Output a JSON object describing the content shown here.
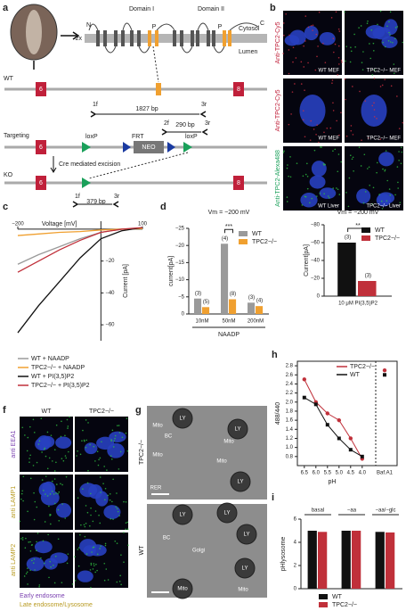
{
  "figure": {
    "panel_labels": [
      "a",
      "b",
      "c",
      "d",
      "e",
      "f",
      "g",
      "h",
      "i"
    ],
    "a": {
      "domain_1": "Domain I",
      "domain_2": "Domain II",
      "n_term": "N",
      "c_term": "C",
      "repeat": "2x",
      "p1": "P",
      "p2": "P",
      "cytosol": "Cytosol",
      "lumen": "Lumen",
      "wt": "WT",
      "wt_exon_6": "6",
      "wt_exon_8": "8",
      "wt_primer_1f": "1f",
      "wt_band_1": "1827 bp",
      "wt_primer_3r": "3r",
      "wt_primer_2f": "2f",
      "wt_band_2": "290 bp",
      "wt_primer_3r_2": "3r",
      "targeting": "Targeting",
      "tg_exon_6": "6",
      "loxp_1": "loxP",
      "frt": "FRT",
      "neo": "NEO",
      "loxp_2": "loxP",
      "cre": "Cre mediated excision",
      "ko": "KO",
      "ko_exon_6": "6",
      "ko_exon_8": "8",
      "ko_primer_1f": "1f",
      "ko_band": "379 bp",
      "ko_primer_3r": "3r"
    },
    "b": {
      "row_labels": [
        "Anti-TPC2-Cy5",
        "Anti-TPC2-Cy5",
        "Anti-TPC2-Alexa488"
      ],
      "captions": [
        "WT MEF",
        "TPC2−/− MEF",
        "WT MEF",
        "TPC2−/− MEF",
        "WT Liver",
        "TPC2−/− Liver"
      ]
    },
    "f": {
      "columns": [
        "WT",
        "TPC2−/−"
      ],
      "rows": [
        "anti EEA1",
        "anti LAMP1",
        "anti LAMP2"
      ],
      "key": [
        "Early endosome",
        "Late endosome/Lysosome"
      ]
    },
    "g": {
      "rows": [
        "TPC2−/−",
        "WT"
      ],
      "labels_top": [
        "LY",
        "Mito",
        "BC",
        "LY",
        "Mito",
        "Mito",
        "Mito",
        "RER",
        "LY"
      ],
      "labels_bottom": [
        "LY",
        "LY",
        "LY",
        "BC",
        "Golgi",
        "LY",
        "Mito",
        "Mito"
      ]
    }
  },
  "chart_data": [
    {
      "type": "line",
      "x_label": "Voltage [mV]",
      "y_label": "Current [pA]",
      "x": [
        -200,
        -150,
        -100,
        -50,
        0,
        50,
        100
      ],
      "xlim": [
        -200,
        100
      ],
      "xticks": [
        {
          "value": -200,
          "label": "−200"
        },
        100
      ],
      "ylim": [
        -70,
        5
      ],
      "yticks": [
        {
          "value": -20,
          "label": "−20"
        },
        {
          "value": -40,
          "label": "−40"
        },
        {
          "value": -60,
          "label": "−60"
        }
      ],
      "legend": "below",
      "series": [
        {
          "name": "WT + NAADP",
          "color": "#9a9a9a",
          "values": [
            -22,
            -16,
            -11,
            -6,
            -2,
            0,
            0.5
          ]
        },
        {
          "name": "TPC2−/− + NAADP",
          "color": "#f0a030",
          "values": [
            -4,
            -3,
            -2,
            -1.5,
            -0.5,
            0,
            0.3
          ]
        },
        {
          "name": "WT + PI(3,5)P2",
          "color": "#111111",
          "values": [
            -65,
            -48,
            -33,
            -18,
            -6,
            -1,
            1
          ]
        },
        {
          "name": "TPC2−/− + PI(3,5)P2",
          "color": "#c0303a",
          "values": [
            -27,
            -20,
            -13,
            -7,
            -2,
            0,
            1
          ]
        }
      ]
    },
    {
      "type": "bar",
      "title": "Vm = −200 mV",
      "y_label": "current[pA]",
      "x_label": "NAADP",
      "categories": [
        "10nM",
        "50nM",
        "200nM"
      ],
      "ylim": [
        0,
        -25
      ],
      "yticks": [
        0,
        {
          "value": -5,
          "label": "−5"
        },
        {
          "value": -10,
          "label": "−10"
        },
        {
          "value": -15,
          "label": "−15"
        },
        {
          "value": -20,
          "label": "−20"
        },
        {
          "value": -25,
          "label": "−25"
        }
      ],
      "legend": "upper right",
      "significance": "***",
      "significance_category": 1,
      "series": [
        {
          "name": "WT",
          "color": "#9a9a9a",
          "values": [
            -4.5,
            -20.5,
            -3.3
          ],
          "n_labels": [
            "(3)",
            "(4)",
            "(3)"
          ]
        },
        {
          "name": "TPC2−/−",
          "color": "#f0a030",
          "values": [
            -2,
            -4.3,
            -2.3
          ],
          "n_labels": [
            "(5)",
            "(8)",
            "(4)"
          ]
        }
      ]
    },
    {
      "type": "bar",
      "title": "Vm = −200 mV",
      "y_label": "Current[pA]",
      "categories": [
        "10 μM PI(3,5)P2"
      ],
      "ylim": [
        0,
        -80
      ],
      "yticks": [
        0,
        {
          "value": -20,
          "label": "−20"
        },
        {
          "value": -40,
          "label": "−40"
        },
        {
          "value": -60,
          "label": "−60"
        },
        {
          "value": -80,
          "label": "−80"
        }
      ],
      "legend": "upper right",
      "significance": "**",
      "significance_category": 0,
      "series": [
        {
          "name": "WT",
          "color": "#111111",
          "values": [
            -60
          ],
          "n_labels": [
            "(3)"
          ]
        },
        {
          "name": "TPC2−/−",
          "color": "#c0303a",
          "values": [
            -17
          ],
          "n_labels": [
            "(3)"
          ]
        }
      ]
    },
    {
      "type": "line",
      "x_label": "pH",
      "y_label": "488/440",
      "x": [
        6.5,
        6.0,
        5.5,
        5.0,
        4.5,
        4.0
      ],
      "xlim": [
        6.8,
        3.8
      ],
      "xticks": [
        6.5,
        {
          "value": 6.0,
          "label": "6.0"
        },
        5.5,
        {
          "value": 5.0,
          "label": "5.0"
        },
        4.5,
        {
          "value": 4.0,
          "label": "4.0"
        }
      ],
      "ylim": [
        0.6,
        2.9
      ],
      "yticks": [
        0.8,
        {
          "value": 1.0,
          "label": "1.0"
        },
        1.2,
        1.4,
        1.6,
        1.8,
        {
          "value": 2.0,
          "label": "2.0"
        },
        2.2,
        2.4,
        2.6,
        2.8
      ],
      "extra_category": "Baf.A1",
      "legend": "upper right",
      "markers": true,
      "series": [
        {
          "name": "TPC2−/−",
          "color": "#c0303a",
          "values": [
            2.5,
            2.0,
            1.75,
            1.6,
            1.2,
            0.75
          ],
          "extra_value": 2.7
        },
        {
          "name": "WT",
          "color": "#111111",
          "values": [
            2.1,
            1.95,
            1.5,
            1.2,
            0.95,
            0.8
          ],
          "extra_value": 2.6
        }
      ]
    },
    {
      "type": "bar",
      "y_label": "pHlysosome",
      "categories": [
        "basal",
        "−aa",
        "−aa/−glc"
      ],
      "ylim": [
        0,
        6
      ],
      "yticks": [
        0,
        2,
        4,
        6
      ],
      "legend": "bottom",
      "category_position": "top",
      "series": [
        {
          "name": "WT",
          "color": "#111111",
          "values": [
            5.0,
            5.0,
            4.9
          ]
        },
        {
          "name": "TPC2−/−",
          "color": "#c0303a",
          "values": [
            4.9,
            5.0,
            4.85
          ]
        }
      ]
    }
  ]
}
